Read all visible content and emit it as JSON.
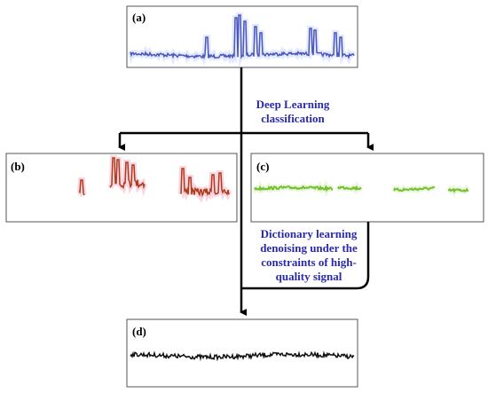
{
  "panels": [
    {
      "label": "(a)"
    },
    {
      "label": "(b)"
    },
    {
      "label": "(c)"
    },
    {
      "label": "(d)"
    }
  ],
  "edges": [
    {
      "lines": [
        "Deep Learning",
        "classification"
      ]
    },
    {
      "lines": [
        "Dictionary learning",
        "denoising under the",
        "constraints of high-",
        "quality signal"
      ]
    }
  ]
}
